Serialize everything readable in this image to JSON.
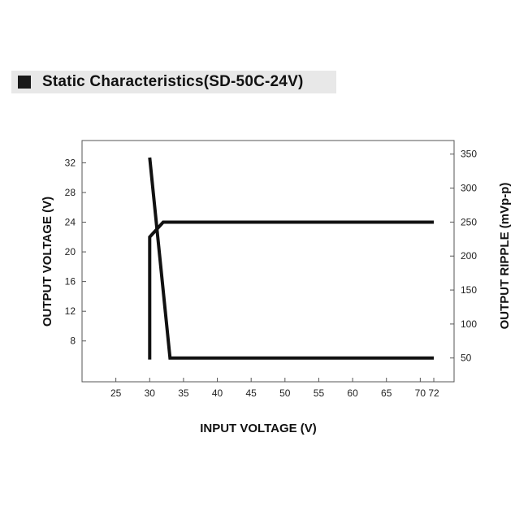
{
  "chart_data": {
    "type": "line",
    "title": "Static Characteristics(SD-50C-24V)",
    "xlabel": "INPUT VOLTAGE (V)",
    "ylabel_left": "OUTPUT VOLTAGE (V)",
    "ylabel_right": "OUTPUT RIPPLE (mVp-p)",
    "xlim": [
      20,
      75
    ],
    "ylim_left": [
      2.5,
      35
    ],
    "ylim_right": [
      15,
      370
    ],
    "x_ticks": [
      25,
      30,
      35,
      40,
      45,
      50,
      55,
      60,
      65,
      70,
      72
    ],
    "y_left_ticks": [
      8,
      12,
      16,
      20,
      24,
      28,
      32
    ],
    "y_right_ticks": [
      50,
      100,
      150,
      200,
      250,
      300,
      350
    ],
    "grid": false,
    "series": [
      {
        "axis": "left",
        "points": [
          [
            30,
            5.5
          ],
          [
            30,
            22
          ],
          [
            32,
            24
          ],
          [
            72,
            24
          ]
        ]
      },
      {
        "axis": "right",
        "points": [
          [
            30,
            345
          ],
          [
            33,
            50
          ],
          [
            72,
            50
          ]
        ]
      }
    ]
  }
}
